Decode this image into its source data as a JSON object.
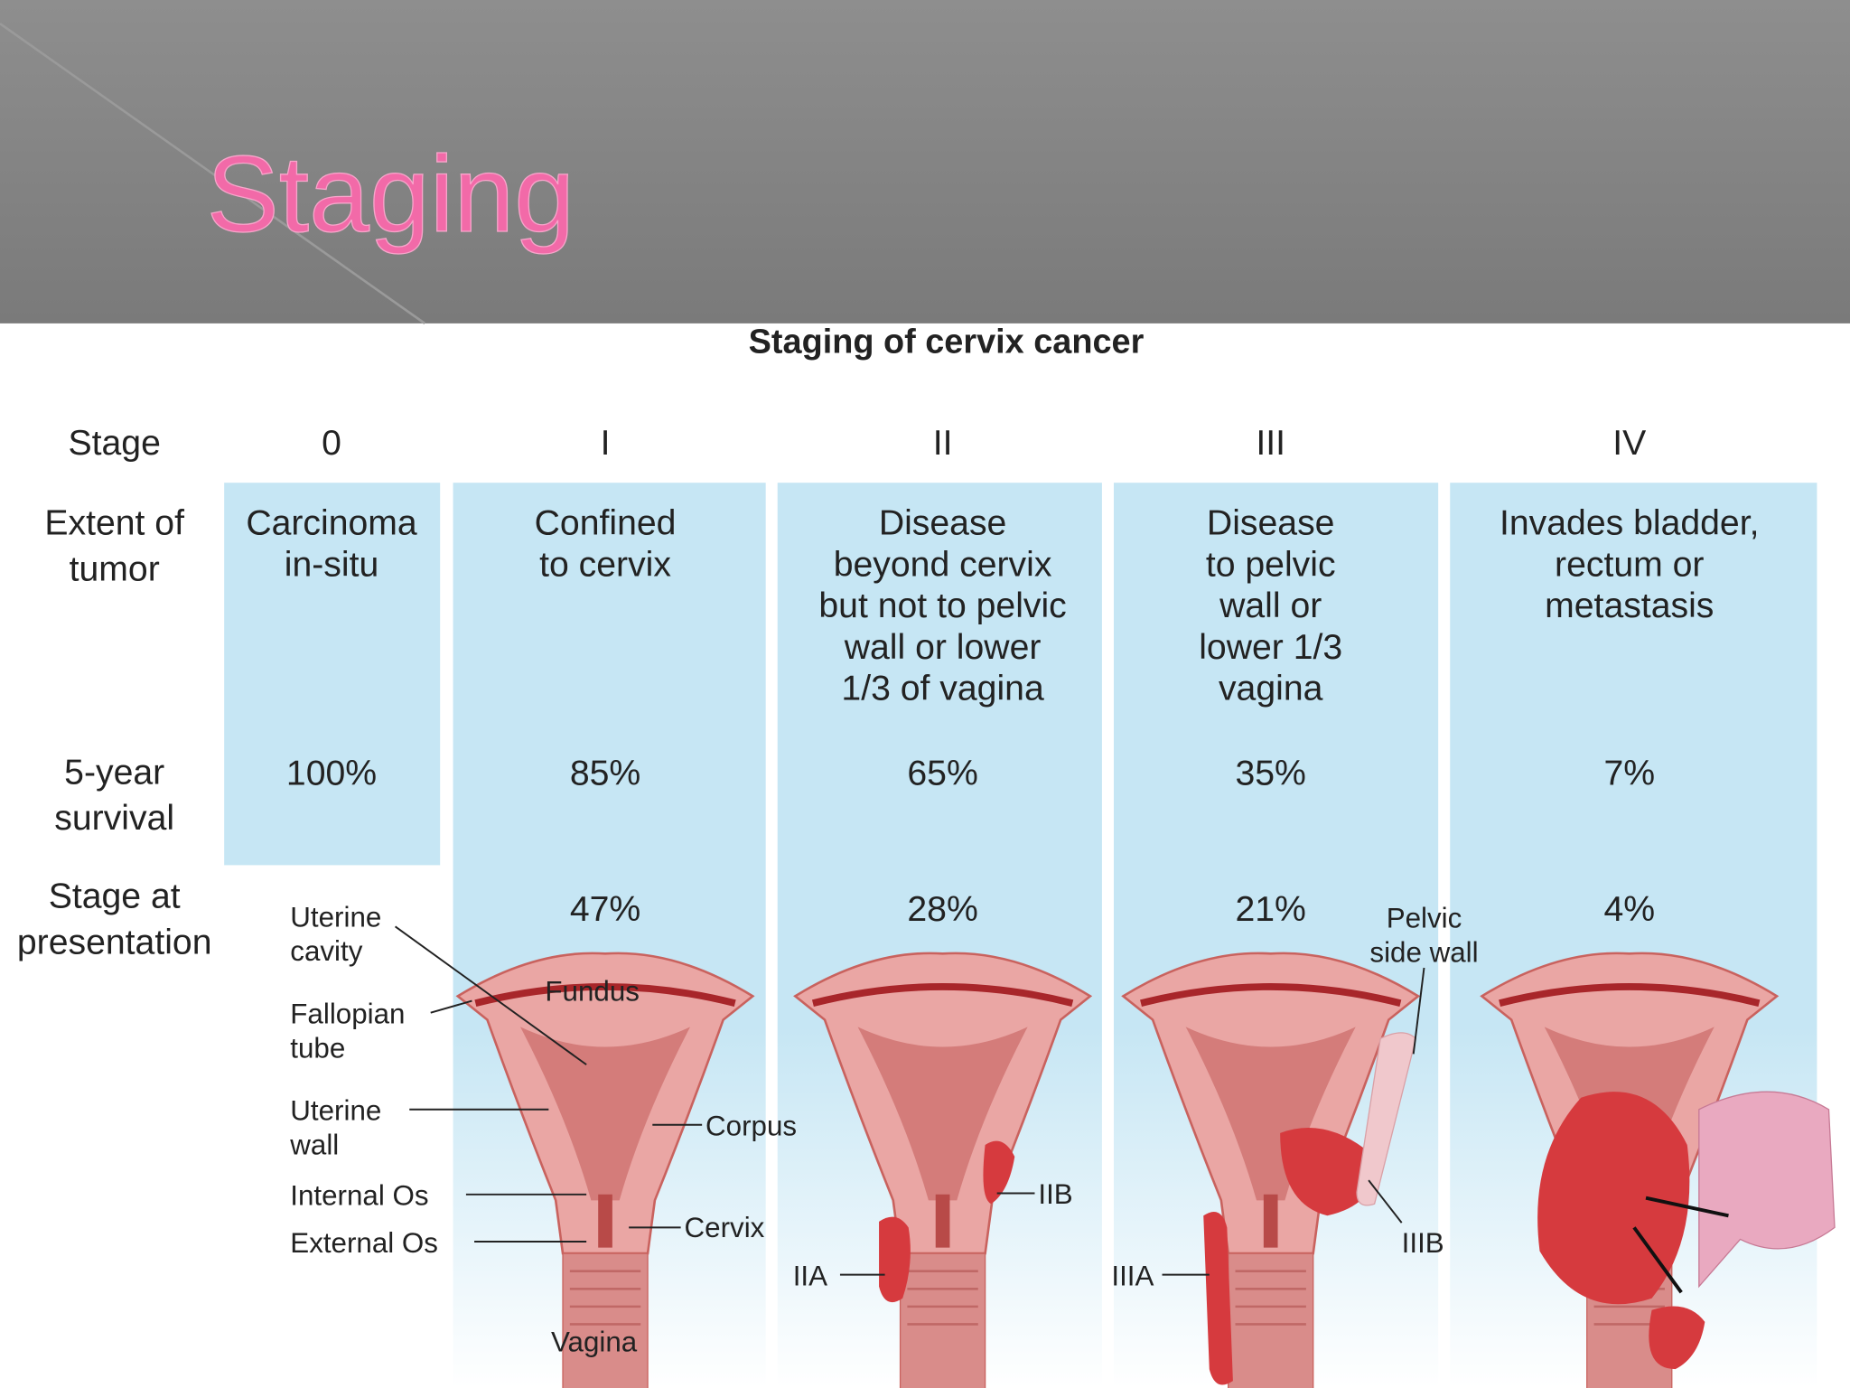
{
  "header": {
    "title": "Staging"
  },
  "figure": {
    "title": "Staging of cervix cancer",
    "row_labels": {
      "stage": "Stage",
      "extent": [
        "Extent of",
        "tumor"
      ],
      "survival": [
        "5-year",
        "survival"
      ],
      "presentation": [
        "Stage at",
        "presentation"
      ]
    },
    "stages": [
      {
        "stage": "0",
        "extent": [
          "Carcinoma",
          "in-situ"
        ],
        "survival": "100%"
      },
      {
        "stage": "I",
        "extent": [
          "Confined",
          "to cervix"
        ],
        "survival": "85%",
        "presentation": "47%"
      },
      {
        "stage": "II",
        "extent": [
          "Disease",
          "beyond cervix",
          "but not to pelvic",
          "wall or lower",
          "1/3 of vagina"
        ],
        "survival": "65%",
        "presentation": "28%"
      },
      {
        "stage": "III",
        "extent": [
          "Disease",
          "to pelvic",
          "wall or",
          "lower 1/3",
          "vagina"
        ],
        "survival": "35%",
        "presentation": "21%"
      },
      {
        "stage": "IV",
        "extent": [
          "Invades bladder,",
          "rectum or",
          "metastasis"
        ],
        "survival": "7%",
        "presentation": "4%"
      }
    ]
  },
  "anatomy_labels": [
    {
      "text": [
        "Uterine",
        "cavity"
      ]
    },
    {
      "text": [
        "Fundus"
      ]
    },
    {
      "text": [
        "Fallopian",
        "tube"
      ]
    },
    {
      "text": [
        "Uterine",
        "wall"
      ]
    },
    {
      "text": [
        "Corpus"
      ]
    },
    {
      "text": [
        "Internal Os"
      ]
    },
    {
      "text": [
        "External Os"
      ]
    },
    {
      "text": [
        "Cervix"
      ]
    },
    {
      "text": [
        "Vagina"
      ]
    },
    {
      "text": [
        "IIA"
      ]
    },
    {
      "text": [
        "IIB"
      ]
    },
    {
      "text": [
        "IIIA"
      ]
    },
    {
      "text": [
        "IIIB"
      ]
    },
    {
      "text": [
        "Pelvic",
        "side wall"
      ]
    }
  ]
}
